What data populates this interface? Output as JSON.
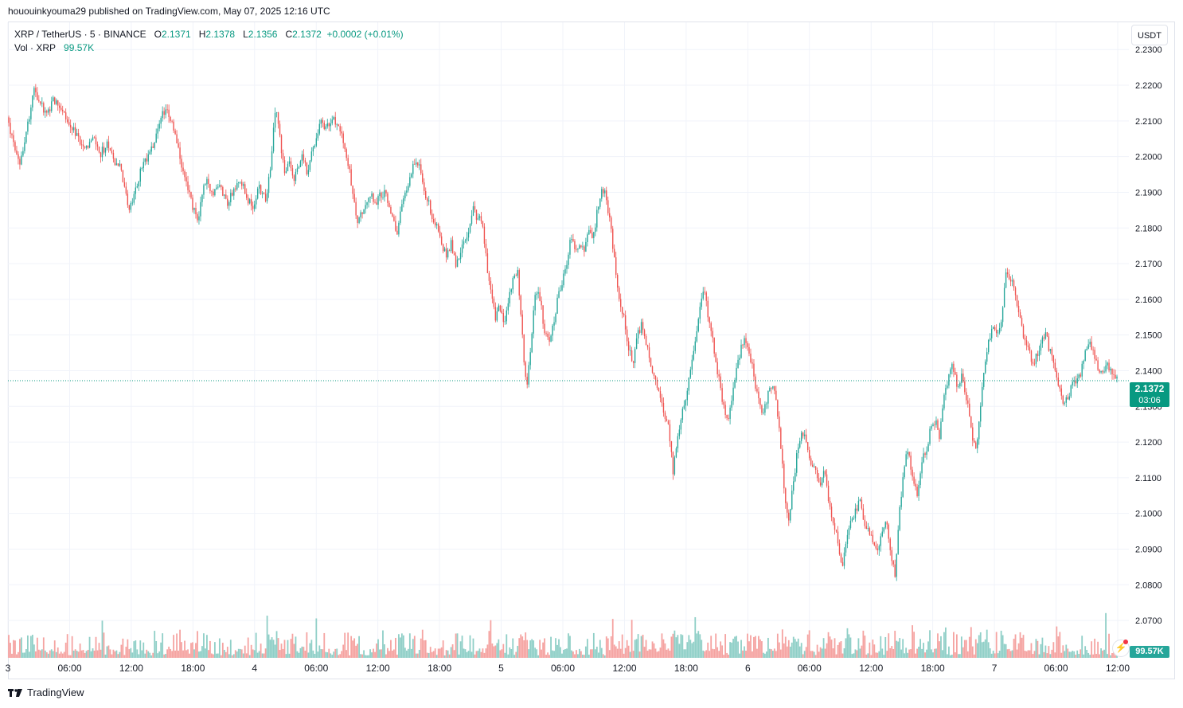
{
  "header": {
    "publish_line": "hououinkyouma29 published on TradingView.com, May 07, 2025 12:16 UTC"
  },
  "legend": {
    "symbol": "XRP / TetherUS · 5 · BINANCE",
    "open_label": "O",
    "open": "2.1371",
    "high_label": "H",
    "high": "2.1378",
    "low_label": "L",
    "low": "2.1356",
    "close_label": "C",
    "close": "2.1372",
    "change": "+0.0002 (+0.01%)",
    "vol_label": "Vol · XRP",
    "vol_value": "99.57K"
  },
  "toolbar": {
    "currency": "USDT"
  },
  "badges": {
    "price": "2.1372",
    "countdown": "03:06",
    "volume": "99.57K"
  },
  "footer": {
    "brand": "TradingView"
  },
  "colors": {
    "up": "#26a69a",
    "down": "#ef5350",
    "up_vol": "#8fcfc7",
    "down_vol": "#f5a3a1",
    "grid": "#f0f3fa",
    "price_line": "#089981"
  },
  "icons": {
    "flash": "flash-icon",
    "logo": "tradingview-logo-icon"
  },
  "chart_data": {
    "type": "candlestick",
    "symbol": "XRP / TetherUS",
    "interval": "5",
    "exchange": "BINANCE",
    "ylim": [
      2.066,
      2.2305
    ],
    "y_ticks": [
      "2.2300",
      "2.2200",
      "2.2100",
      "2.2000",
      "2.1900",
      "2.1800",
      "2.1700",
      "2.1600",
      "2.1500",
      "2.1400",
      "2.1300",
      "2.1200",
      "2.1100",
      "2.1000",
      "2.0900",
      "2.0800",
      "2.0700"
    ],
    "x_ticks": [
      "3",
      "06:00",
      "12:00",
      "18:00",
      "4",
      "06:00",
      "12:00",
      "18:00",
      "5",
      "06:00",
      "12:00",
      "18:00",
      "6",
      "06:00",
      "12:00",
      "18:00",
      "7",
      "06:00",
      "12:00"
    ],
    "x_tick_fractions": [
      0.0,
      0.0556,
      0.1111,
      0.1667,
      0.2222,
      0.2778,
      0.3333,
      0.3889,
      0.4444,
      0.5,
      0.5556,
      0.6111,
      0.6667,
      0.7222,
      0.7778,
      0.8333,
      0.8889,
      0.9444,
      1.0
    ],
    "last_price": 2.1372,
    "price_path": [
      [
        0.0,
        2.211
      ],
      [
        0.006,
        2.203
      ],
      [
        0.012,
        2.198
      ],
      [
        0.018,
        2.208
      ],
      [
        0.024,
        2.219
      ],
      [
        0.03,
        2.215
      ],
      [
        0.036,
        2.212
      ],
      [
        0.042,
        2.216
      ],
      [
        0.048,
        2.214
      ],
      [
        0.054,
        2.21
      ],
      [
        0.06,
        2.207
      ],
      [
        0.066,
        2.204
      ],
      [
        0.072,
        2.203
      ],
      [
        0.078,
        2.205
      ],
      [
        0.084,
        2.201
      ],
      [
        0.09,
        2.203
      ],
      [
        0.096,
        2.199
      ],
      [
        0.102,
        2.197
      ],
      [
        0.106,
        2.19
      ],
      [
        0.11,
        2.185
      ],
      [
        0.114,
        2.188
      ],
      [
        0.12,
        2.196
      ],
      [
        0.126,
        2.2
      ],
      [
        0.132,
        2.204
      ],
      [
        0.138,
        2.211
      ],
      [
        0.144,
        2.214
      ],
      [
        0.148,
        2.21
      ],
      [
        0.152,
        2.205
      ],
      [
        0.156,
        2.199
      ],
      [
        0.16,
        2.195
      ],
      [
        0.164,
        2.19
      ],
      [
        0.168,
        2.185
      ],
      [
        0.172,
        2.182
      ],
      [
        0.176,
        2.191
      ],
      [
        0.18,
        2.193
      ],
      [
        0.186,
        2.19
      ],
      [
        0.192,
        2.192
      ],
      [
        0.198,
        2.187
      ],
      [
        0.204,
        2.191
      ],
      [
        0.21,
        2.194
      ],
      [
        0.216,
        2.188
      ],
      [
        0.222,
        2.186
      ],
      [
        0.226,
        2.192
      ],
      [
        0.23,
        2.19
      ],
      [
        0.234,
        2.188
      ],
      [
        0.238,
        2.2
      ],
      [
        0.242,
        2.214
      ],
      [
        0.246,
        2.205
      ],
      [
        0.25,
        2.195
      ],
      [
        0.254,
        2.198
      ],
      [
        0.258,
        2.193
      ],
      [
        0.262,
        2.197
      ],
      [
        0.266,
        2.2
      ],
      [
        0.27,
        2.196
      ],
      [
        0.274,
        2.2
      ],
      [
        0.278,
        2.204
      ],
      [
        0.282,
        2.21
      ],
      [
        0.288,
        2.208
      ],
      [
        0.294,
        2.21
      ],
      [
        0.3,
        2.208
      ],
      [
        0.304,
        2.203
      ],
      [
        0.308,
        2.197
      ],
      [
        0.312,
        2.188
      ],
      [
        0.316,
        2.181
      ],
      [
        0.32,
        2.185
      ],
      [
        0.324,
        2.188
      ],
      [
        0.328,
        2.19
      ],
      [
        0.332,
        2.187
      ],
      [
        0.336,
        2.189
      ],
      [
        0.34,
        2.19
      ],
      [
        0.344,
        2.186
      ],
      [
        0.348,
        2.181
      ],
      [
        0.352,
        2.179
      ],
      [
        0.356,
        2.188
      ],
      [
        0.36,
        2.19
      ],
      [
        0.364,
        2.195
      ],
      [
        0.368,
        2.199
      ],
      [
        0.372,
        2.197
      ],
      [
        0.376,
        2.189
      ],
      [
        0.38,
        2.187
      ],
      [
        0.384,
        2.182
      ],
      [
        0.388,
        2.18
      ],
      [
        0.392,
        2.175
      ],
      [
        0.396,
        2.172
      ],
      [
        0.4,
        2.176
      ],
      [
        0.404,
        2.17
      ],
      [
        0.408,
        2.173
      ],
      [
        0.412,
        2.177
      ],
      [
        0.416,
        2.179
      ],
      [
        0.42,
        2.185
      ],
      [
        0.424,
        2.182
      ],
      [
        0.428,
        2.183
      ],
      [
        0.432,
        2.17
      ],
      [
        0.436,
        2.163
      ],
      [
        0.44,
        2.155
      ],
      [
        0.444,
        2.158
      ],
      [
        0.448,
        2.154
      ],
      [
        0.452,
        2.161
      ],
      [
        0.456,
        2.166
      ],
      [
        0.46,
        2.168
      ],
      [
        0.464,
        2.15
      ],
      [
        0.468,
        2.135
      ],
      [
        0.472,
        2.148
      ],
      [
        0.476,
        2.163
      ],
      [
        0.48,
        2.16
      ],
      [
        0.484,
        2.152
      ],
      [
        0.488,
        2.148
      ],
      [
        0.492,
        2.152
      ],
      [
        0.496,
        2.16
      ],
      [
        0.5,
        2.165
      ],
      [
        0.504,
        2.17
      ],
      [
        0.508,
        2.178
      ],
      [
        0.512,
        2.173
      ],
      [
        0.516,
        2.176
      ],
      [
        0.52,
        2.174
      ],
      [
        0.524,
        2.18
      ],
      [
        0.528,
        2.177
      ],
      [
        0.532,
        2.185
      ],
      [
        0.536,
        2.192
      ],
      [
        0.54,
        2.188
      ],
      [
        0.544,
        2.18
      ],
      [
        0.548,
        2.168
      ],
      [
        0.552,
        2.16
      ],
      [
        0.556,
        2.155
      ],
      [
        0.56,
        2.146
      ],
      [
        0.564,
        2.142
      ],
      [
        0.568,
        2.15
      ],
      [
        0.572,
        2.153
      ],
      [
        0.576,
        2.148
      ],
      [
        0.58,
        2.14
      ],
      [
        0.584,
        2.137
      ],
      [
        0.588,
        2.132
      ],
      [
        0.592,
        2.128
      ],
      [
        0.596,
        2.124
      ],
      [
        0.6,
        2.112
      ],
      [
        0.604,
        2.12
      ],
      [
        0.608,
        2.128
      ],
      [
        0.612,
        2.133
      ],
      [
        0.616,
        2.141
      ],
      [
        0.62,
        2.148
      ],
      [
        0.624,
        2.158
      ],
      [
        0.628,
        2.162
      ],
      [
        0.632,
        2.155
      ],
      [
        0.636,
        2.148
      ],
      [
        0.64,
        2.14
      ],
      [
        0.644,
        2.133
      ],
      [
        0.648,
        2.125
      ],
      [
        0.652,
        2.13
      ],
      [
        0.656,
        2.138
      ],
      [
        0.66,
        2.144
      ],
      [
        0.664,
        2.15
      ],
      [
        0.668,
        2.146
      ],
      [
        0.672,
        2.14
      ],
      [
        0.676,
        2.133
      ],
      [
        0.68,
        2.128
      ],
      [
        0.684,
        2.131
      ],
      [
        0.688,
        2.136
      ],
      [
        0.692,
        2.133
      ],
      [
        0.696,
        2.122
      ],
      [
        0.7,
        2.108
      ],
      [
        0.704,
        2.096
      ],
      [
        0.708,
        2.108
      ],
      [
        0.712,
        2.117
      ],
      [
        0.716,
        2.122
      ],
      [
        0.72,
        2.121
      ],
      [
        0.724,
        2.115
      ],
      [
        0.728,
        2.113
      ],
      [
        0.732,
        2.108
      ],
      [
        0.736,
        2.112
      ],
      [
        0.74,
        2.104
      ],
      [
        0.744,
        2.098
      ],
      [
        0.748,
        2.094
      ],
      [
        0.752,
        2.085
      ],
      [
        0.756,
        2.092
      ],
      [
        0.76,
        2.098
      ],
      [
        0.764,
        2.1
      ],
      [
        0.768,
        2.104
      ],
      [
        0.772,
        2.098
      ],
      [
        0.776,
        2.096
      ],
      [
        0.78,
        2.093
      ],
      [
        0.784,
        2.09
      ],
      [
        0.788,
        2.094
      ],
      [
        0.792,
        2.098
      ],
      [
        0.796,
        2.088
      ],
      [
        0.8,
        2.083
      ],
      [
        0.804,
        2.1
      ],
      [
        0.808,
        2.113
      ],
      [
        0.812,
        2.118
      ],
      [
        0.816,
        2.11
      ],
      [
        0.82,
        2.105
      ],
      [
        0.824,
        2.115
      ],
      [
        0.828,
        2.117
      ],
      [
        0.832,
        2.124
      ],
      [
        0.836,
        2.126
      ],
      [
        0.84,
        2.122
      ],
      [
        0.844,
        2.132
      ],
      [
        0.848,
        2.138
      ],
      [
        0.852,
        2.142
      ],
      [
        0.856,
        2.136
      ],
      [
        0.86,
        2.138
      ],
      [
        0.864,
        2.133
      ],
      [
        0.868,
        2.125
      ],
      [
        0.872,
        2.118
      ],
      [
        0.876,
        2.125
      ],
      [
        0.88,
        2.14
      ],
      [
        0.884,
        2.148
      ],
      [
        0.888,
        2.152
      ],
      [
        0.892,
        2.15
      ],
      [
        0.896,
        2.155
      ],
      [
        0.9,
        2.168
      ],
      [
        0.904,
        2.166
      ],
      [
        0.908,
        2.162
      ],
      [
        0.912,
        2.156
      ],
      [
        0.916,
        2.15
      ],
      [
        0.92,
        2.146
      ],
      [
        0.924,
        2.142
      ],
      [
        0.928,
        2.144
      ],
      [
        0.932,
        2.149
      ],
      [
        0.936,
        2.15
      ],
      [
        0.94,
        2.145
      ],
      [
        0.944,
        2.14
      ],
      [
        0.948,
        2.136
      ],
      [
        0.952,
        2.131
      ],
      [
        0.956,
        2.133
      ],
      [
        0.96,
        2.136
      ],
      [
        0.964,
        2.138
      ],
      [
        0.968,
        2.14
      ],
      [
        0.972,
        2.147
      ],
      [
        0.976,
        2.148
      ],
      [
        0.98,
        2.144
      ],
      [
        0.984,
        2.14
      ],
      [
        0.988,
        2.141
      ],
      [
        0.992,
        2.141
      ],
      [
        0.996,
        2.139
      ],
      [
        1.0,
        2.1372
      ]
    ]
  }
}
